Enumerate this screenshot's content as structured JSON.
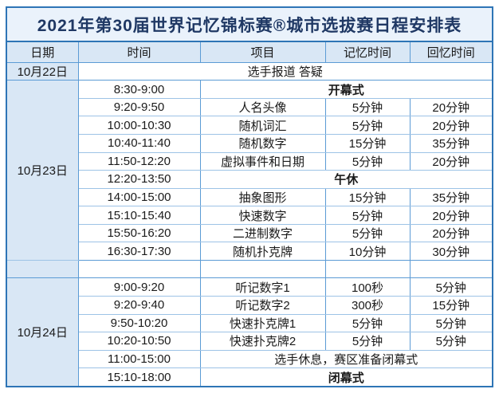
{
  "table": {
    "title": "2021年第30届世界记忆锦标赛®城市选拔赛日程安排表",
    "headers": {
      "date": "日期",
      "time": "时间",
      "event": "项目",
      "memory": "记忆时间",
      "recall": "回忆时间"
    },
    "day1": {
      "date": "10月22日",
      "note": "选手报道 答疑"
    },
    "day2": {
      "date": "10月23日",
      "rows": [
        {
          "time": "8:30-9:00",
          "event": "开幕式"
        },
        {
          "time": "9:20-9:50",
          "event": "人名头像",
          "memory": "5分钟",
          "recall": "20分钟"
        },
        {
          "time": "10:00-10:30",
          "event": "随机词汇",
          "memory": "5分钟",
          "recall": "20分钟"
        },
        {
          "time": "10:40-11:40",
          "event": "随机数字",
          "memory": "15分钟",
          "recall": "35分钟"
        },
        {
          "time": "11:50-12:20",
          "event": "虚拟事件和日期",
          "memory": "5分钟",
          "recall": "20分钟"
        },
        {
          "time": "12:20-13:50",
          "event": "午休"
        },
        {
          "time": "14:00-15:00",
          "event": "抽象图形",
          "memory": "15分钟",
          "recall": "35分钟"
        },
        {
          "time": "15:10-15:40",
          "event": "快速数字",
          "memory": "5分钟",
          "recall": "20分钟"
        },
        {
          "time": "15:50-16:20",
          "event": "二进制数字",
          "memory": "5分钟",
          "recall": "20分钟"
        },
        {
          "time": "16:30-17:30",
          "event": "随机扑克牌",
          "memory": "10分钟",
          "recall": "30分钟"
        }
      ]
    },
    "day3": {
      "date": "10月24日",
      "rows": [
        {
          "time": "9:00-9:20",
          "event": "听记数字1",
          "memory": "100秒",
          "recall": "5分钟"
        },
        {
          "time": "9:20-9:40",
          "event": "听记数字2",
          "memory": "300秒",
          "recall": "15分钟"
        },
        {
          "time": "9:50-10:20",
          "event": "快速扑克牌1",
          "memory": "5分钟",
          "recall": "5分钟"
        },
        {
          "time": "10:20-10:50",
          "event": "快速扑克牌2",
          "memory": "5分钟",
          "recall": "5分钟"
        },
        {
          "time": "11:00-15:00",
          "event": "选手休息，赛区准备闭幕式"
        },
        {
          "time": "15:10-18:00",
          "event": "闭幕式"
        }
      ]
    },
    "colors": {
      "border_outer": "#2E75B6",
      "border_column": "#5B9BD5",
      "border_row": "#9DC3E6",
      "title_bg": "#EAF2FB",
      "header_bg": "#D9E7F5",
      "date_cell_bg": "#D9E7F5",
      "body_bg": "#FFFFFF",
      "title_text": "#1F3864",
      "body_text": "#1A1A1A"
    }
  }
}
